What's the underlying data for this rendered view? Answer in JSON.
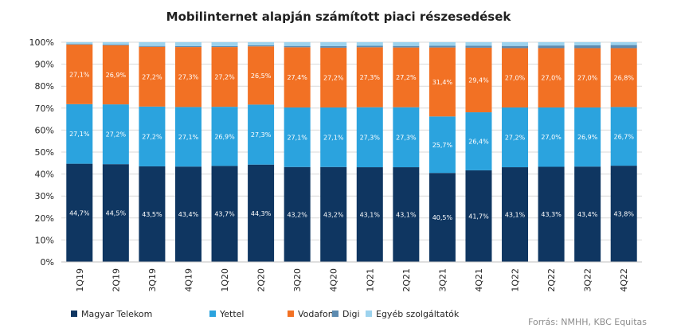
{
  "chart_data": {
    "type": "bar",
    "stacked": true,
    "title": "Mobilinternet alapján számított piaci részesedések",
    "source": "Forrás: NMHH, KBC Equitas",
    "categories": [
      "1Q19",
      "2Q19",
      "3Q19",
      "4Q19",
      "1Q20",
      "2Q20",
      "3Q20",
      "4Q20",
      "1Q21",
      "2Q21",
      "3Q21",
      "4Q21",
      "1Q22",
      "2Q22",
      "3Q22",
      "4Q22"
    ],
    "ylim": [
      0,
      100
    ],
    "yticks": [
      0,
      10,
      20,
      30,
      40,
      50,
      60,
      70,
      80,
      90,
      100
    ],
    "ytick_suffix": "%",
    "grid": true,
    "legend_position": "bottom",
    "series": [
      {
        "name": "Magyar Telekom",
        "color": "#0f3661",
        "values": [
          44.7,
          44.5,
          43.5,
          43.4,
          43.7,
          44.3,
          43.2,
          43.2,
          43.1,
          43.1,
          40.5,
          41.7,
          43.1,
          43.3,
          43.4,
          43.8
        ],
        "labels": [
          "44,7%",
          "44,5%",
          "43,5%",
          "43,4%",
          "43,7%",
          "44,3%",
          "43,2%",
          "43,2%",
          "43,1%",
          "43,1%",
          "40,5%",
          "41,7%",
          "43,1%",
          "43,3%",
          "43,4%",
          "43,8%"
        ]
      },
      {
        "name": "Yettel",
        "color": "#2ba3de",
        "values": [
          27.1,
          27.2,
          27.2,
          27.1,
          26.9,
          27.3,
          27.1,
          27.1,
          27.3,
          27.3,
          25.7,
          26.4,
          27.2,
          27.0,
          26.9,
          26.7
        ],
        "labels": [
          "27,1%",
          "27,2%",
          "27,2%",
          "27,1%",
          "26,9%",
          "27,3%",
          "27,1%",
          "27,1%",
          "27,3%",
          "27,3%",
          "25,7%",
          "26,4%",
          "27,2%",
          "27,0%",
          "26,9%",
          "26,7%"
        ]
      },
      {
        "name": "Vodafone",
        "color": "#f27124",
        "values": [
          27.1,
          26.9,
          27.2,
          27.3,
          27.2,
          26.5,
          27.4,
          27.2,
          27.3,
          27.2,
          31.4,
          29.4,
          27.0,
          27.0,
          27.0,
          26.8
        ],
        "labels": [
          "27,1%",
          "26,9%",
          "27,2%",
          "27,3%",
          "27,2%",
          "26,5%",
          "27,4%",
          "27,2%",
          "27,3%",
          "27,2%",
          "31,4%",
          "29,4%",
          "27,0%",
          "27,0%",
          "27,0%",
          "26,8%"
        ]
      },
      {
        "name": "Digi",
        "color": "#5c8bb0",
        "values": [
          0.2,
          0.3,
          0.4,
          0.4,
          0.4,
          0.5,
          0.6,
          0.7,
          0.7,
          0.7,
          0.8,
          0.9,
          1.0,
          1.2,
          1.3,
          1.4
        ],
        "labels": []
      },
      {
        "name": "Egyéb szolgáltatók",
        "color": "#9dd3ee",
        "values": [
          0.9,
          1.1,
          1.7,
          1.8,
          1.8,
          1.4,
          1.7,
          1.8,
          1.6,
          1.7,
          1.6,
          1.6,
          1.7,
          1.5,
          1.4,
          1.3
        ],
        "labels": []
      }
    ]
  }
}
